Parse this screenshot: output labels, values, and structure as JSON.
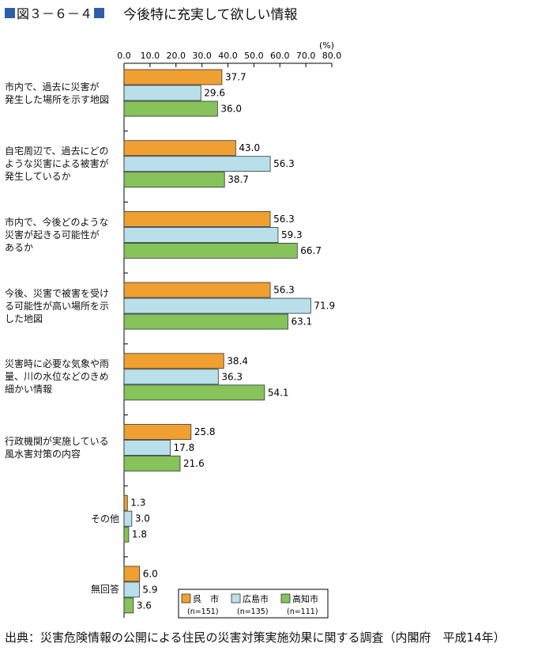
{
  "title": {
    "figure_number": "図３－６－４",
    "text": "今後特に充実して欲しい情報"
  },
  "source": "出典：災害危険情報の公開による住民の災害対策実施効果に関する調査（内閣府　平成14年）",
  "colors": {
    "title_marker": "#2d5fa8",
    "series": [
      "#f0a030",
      "#b9e0ea",
      "#86c35a"
    ]
  },
  "chart_data": {
    "type": "bar",
    "orientation": "horizontal",
    "unit": "(%)",
    "xlim": [
      0,
      80
    ],
    "ticks": [
      "0.0",
      "10.0",
      "20.0",
      "30.0",
      "40.0",
      "50.0",
      "60.0",
      "70.0",
      "80.0"
    ],
    "grid": false,
    "legend_position": "bottom-right",
    "categories": [
      [
        "市内で、過去に災害が",
        "発生した場所を示す地図"
      ],
      [
        "自宅周辺で、過去にどの",
        "ような災害による被害が",
        "発生しているか"
      ],
      [
        "市内で、今後どのような",
        "災害が起きる可能性が",
        "あるか"
      ],
      [
        "今後、災害で被害を受け",
        "る可能性が高い場所を示",
        "した地図"
      ],
      [
        "災害時に必要な気象や雨",
        "量、川の水位などのきめ",
        "細かい情報"
      ],
      [
        "行政機関が実施している",
        "風水害対策の内容"
      ],
      [
        "その他"
      ],
      [
        "無回答"
      ]
    ],
    "series": [
      {
        "name": "呉　市",
        "n": "(n=151)",
        "values": [
          37.7,
          43.0,
          56.3,
          56.3,
          38.4,
          25.8,
          1.3,
          6.0
        ]
      },
      {
        "name": "広島市",
        "n": "(n=135)",
        "values": [
          29.6,
          56.3,
          59.3,
          71.9,
          36.3,
          17.8,
          3.0,
          5.9
        ]
      },
      {
        "name": "高知市",
        "n": "(n=111)",
        "values": [
          36.0,
          38.7,
          66.7,
          63.1,
          54.1,
          21.6,
          1.8,
          3.6
        ]
      }
    ]
  }
}
